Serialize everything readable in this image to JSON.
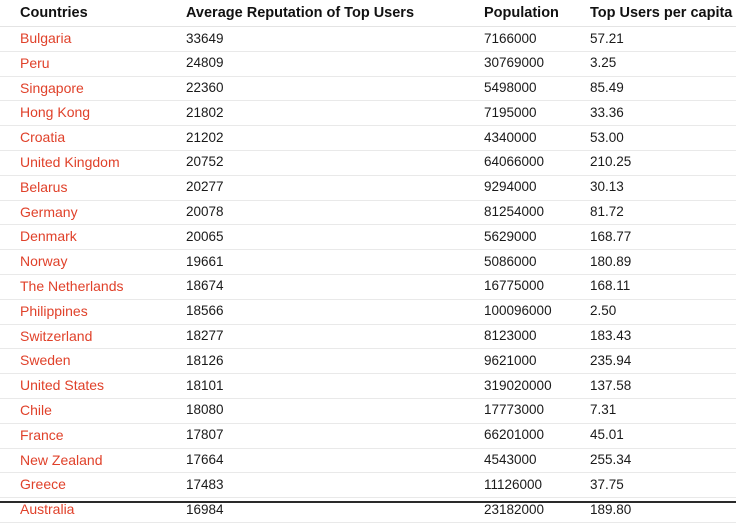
{
  "table": {
    "headers": {
      "country": "Countries",
      "reputation": "Average Reputation of Top Users",
      "population": "Population",
      "per_capita": "Top Users per capita"
    },
    "rows": [
      {
        "country": "Bulgaria",
        "reputation": "33649",
        "population": "7166000",
        "per_capita": "57.21"
      },
      {
        "country": "Peru",
        "reputation": "24809",
        "population": "30769000",
        "per_capita": "3.25"
      },
      {
        "country": "Singapore",
        "reputation": "22360",
        "population": "5498000",
        "per_capita": "85.49"
      },
      {
        "country": "Hong Kong",
        "reputation": "21802",
        "population": "7195000",
        "per_capita": "33.36"
      },
      {
        "country": "Croatia",
        "reputation": "21202",
        "population": "4340000",
        "per_capita": "53.00"
      },
      {
        "country": "United Kingdom",
        "reputation": "20752",
        "population": "64066000",
        "per_capita": "210.25"
      },
      {
        "country": "Belarus",
        "reputation": "20277",
        "population": "9294000",
        "per_capita": "30.13"
      },
      {
        "country": "Germany",
        "reputation": "20078",
        "population": "81254000",
        "per_capita": "81.72"
      },
      {
        "country": "Denmark",
        "reputation": "20065",
        "population": "5629000",
        "per_capita": "168.77"
      },
      {
        "country": "Norway",
        "reputation": "19661",
        "population": "5086000",
        "per_capita": "180.89"
      },
      {
        "country": "The Netherlands",
        "reputation": "18674",
        "population": "16775000",
        "per_capita": "168.11"
      },
      {
        "country": "Philippines",
        "reputation": "18566",
        "population": "100096000",
        "per_capita": "2.50"
      },
      {
        "country": "Switzerland",
        "reputation": "18277",
        "population": "8123000",
        "per_capita": "183.43"
      },
      {
        "country": "Sweden",
        "reputation": "18126",
        "population": "9621000",
        "per_capita": "235.94"
      },
      {
        "country": "United States",
        "reputation": "18101",
        "population": "319020000",
        "per_capita": "137.58"
      },
      {
        "country": "Chile",
        "reputation": "18080",
        "population": "17773000",
        "per_capita": "7.31"
      },
      {
        "country": "France",
        "reputation": "17807",
        "population": "66201000",
        "per_capita": "45.01"
      },
      {
        "country": "New Zealand",
        "reputation": "17664",
        "population": "4543000",
        "per_capita": "255.34"
      },
      {
        "country": "Greece",
        "reputation": "17483",
        "population": "11126000",
        "per_capita": "37.75"
      },
      {
        "country": "Australia",
        "reputation": "16984",
        "population": "23182000",
        "per_capita": "189.80"
      }
    ]
  },
  "colors": {
    "link": "#e0412a",
    "text": "#1a1a1a",
    "row_border": "#e9e9e9"
  }
}
